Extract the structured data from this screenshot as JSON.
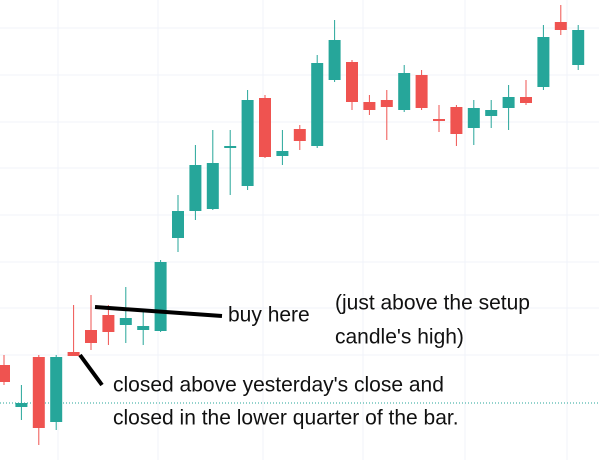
{
  "chart_data": {
    "type": "candlestick",
    "open": [
      95,
      53,
      103,
      38,
      108,
      130,
      145,
      135,
      130,
      129,
      222,
      249,
      251,
      312,
      274,
      362,
      304,
      331,
      314,
      380,
      398,
      358,
      360,
      350,
      385,
      341,
      353,
      332,
      344,
      352,
      363,
      373,
      438,
      395
    ],
    "high": [
      105,
      75,
      105,
      105,
      155,
      165,
      155,
      173,
      148,
      200,
      265,
      315,
      330,
      330,
      370,
      365,
      330,
      335,
      405,
      440,
      400,
      365,
      370,
      395,
      390,
      355,
      355,
      360,
      360,
      375,
      380,
      435,
      455,
      435
    ],
    "low": [
      75,
      40,
      15,
      30,
      104,
      110,
      115,
      117,
      115,
      128,
      208,
      240,
      250,
      265,
      270,
      302,
      295,
      310,
      312,
      378,
      350,
      345,
      320,
      348,
      350,
      328,
      314,
      315,
      332,
      330,
      355,
      370,
      425,
      390
    ],
    "close": [
      78,
      57,
      32,
      103,
      104,
      117,
      128,
      142,
      134,
      198,
      249,
      295,
      297,
      314,
      360,
      303,
      309,
      319,
      397,
      420,
      358,
      350,
      353,
      387,
      352,
      339,
      326,
      352,
      350,
      363,
      357,
      423,
      430,
      430
    ],
    "up_color": "#26a69a",
    "down_color": "#ef5350",
    "ylim": [
      0,
      460
    ],
    "annotations": {
      "buy": "buy here",
      "setup": [
        "(just above the setup",
        "candle's high)"
      ],
      "closed": [
        "closed above yesterday's close and",
        "closed in the lower quarter of the bar."
      ]
    }
  }
}
